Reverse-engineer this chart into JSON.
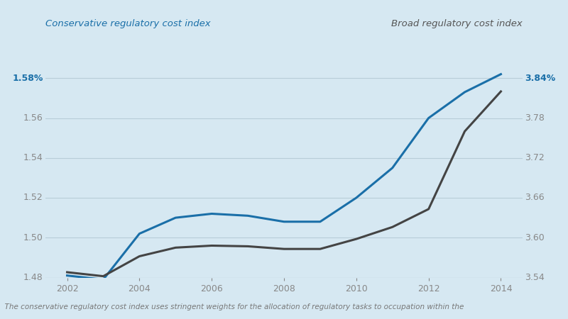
{
  "background_color": "#d6e8f2",
  "plot_bg_color": "#d6e8f2",
  "left_axis_label": "Conservative regulatory cost index",
  "right_axis_label": "Broad regulatory cost index",
  "footnote": "  The conservative regulatory cost index uses stringent weights for the allocation of regulatory tasks to occupation within the",
  "x_years": [
    2002,
    2003,
    2004,
    2005,
    2006,
    2007,
    2008,
    2009,
    2010,
    2011,
    2012,
    2013,
    2014
  ],
  "conservative": [
    1.481,
    1.479,
    1.502,
    1.51,
    1.512,
    1.511,
    1.508,
    1.508,
    1.52,
    1.535,
    1.56,
    1.573,
    1.582
  ],
  "broad": [
    3.548,
    3.542,
    3.572,
    3.585,
    3.588,
    3.587,
    3.583,
    3.583,
    3.598,
    3.616,
    3.643,
    3.76,
    3.82
  ],
  "conservative_color": "#1a6fa8",
  "broad_color": "#444444",
  "left_ylim": [
    1.48,
    1.6
  ],
  "right_ylim": [
    3.54,
    3.9
  ],
  "left_yticks": [
    1.48,
    1.5,
    1.52,
    1.54,
    1.56,
    1.58
  ],
  "right_yticks": [
    3.54,
    3.6,
    3.66,
    3.72,
    3.78,
    3.84
  ],
  "xticks": [
    2002,
    2004,
    2006,
    2008,
    2010,
    2012,
    2014
  ],
  "grid_color": "#b8cdd8",
  "tick_color": "#888888",
  "label_color_left": "#1a6fa8",
  "label_color_right": "#555555"
}
